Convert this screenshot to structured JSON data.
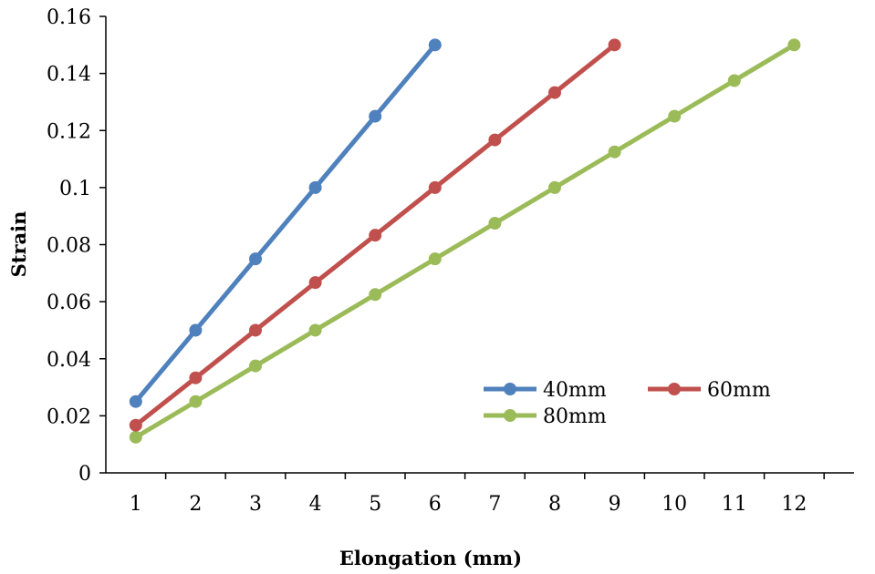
{
  "chart_data": {
    "type": "line",
    "xlabel": "Elongation (mm)",
    "ylabel": "Strain",
    "x_categories": [
      "1",
      "2",
      "3",
      "4",
      "5",
      "6",
      "7",
      "8",
      "9",
      "10",
      "11",
      "12"
    ],
    "ylim": [
      0,
      0.16
    ],
    "y_ticks": [
      "0",
      "0.02",
      "0.04",
      "0.06",
      "0.08",
      "0.1",
      "0.12",
      "0.14",
      "0.16"
    ],
    "grid": false,
    "legend_position": "lower-right",
    "series": [
      {
        "name": "40mm",
        "color": "#4f81bd",
        "x": [
          1,
          2,
          3,
          4,
          5,
          6
        ],
        "values": [
          0.025,
          0.05,
          0.075,
          0.1,
          0.125,
          0.15
        ]
      },
      {
        "name": "60mm",
        "color": "#c0504d",
        "x": [
          1,
          2,
          3,
          4,
          5,
          6,
          7,
          8,
          9
        ],
        "values": [
          0.0167,
          0.0333,
          0.05,
          0.0667,
          0.0833,
          0.1,
          0.1167,
          0.1333,
          0.15
        ]
      },
      {
        "name": "80mm",
        "color": "#9bbb59",
        "x": [
          1,
          2,
          3,
          4,
          5,
          6,
          7,
          8,
          9,
          10,
          11,
          12
        ],
        "values": [
          0.0125,
          0.025,
          0.0375,
          0.05,
          0.0625,
          0.075,
          0.0875,
          0.1,
          0.1125,
          0.125,
          0.1375,
          0.15
        ]
      }
    ]
  }
}
